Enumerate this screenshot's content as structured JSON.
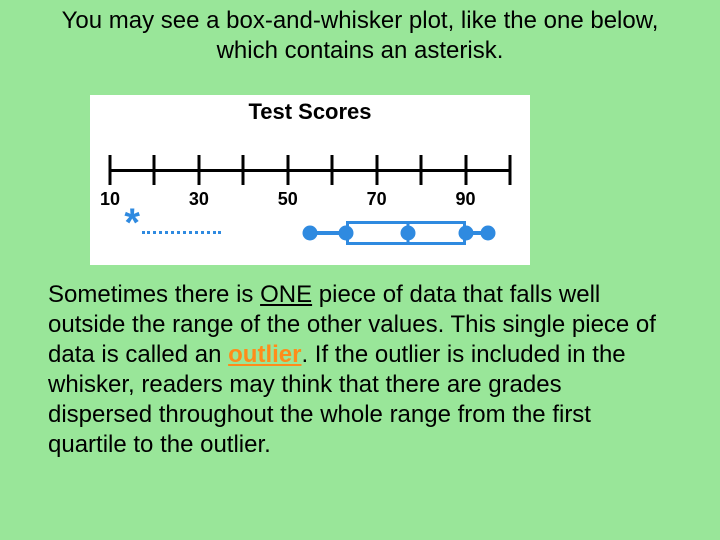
{
  "intro_line1": "You may see a box-and-whisker plot, like the one below,",
  "intro_line2": "which contains an asterisk.",
  "chart": {
    "title": "Test Scores",
    "bg_color": "#ffffff",
    "axis_color": "#000000",
    "series_color": "#2f8ae0",
    "axis": {
      "min": 10,
      "max": 100,
      "tick_step": 10,
      "label_step": 20
    },
    "tick_labels": [
      "10",
      "30",
      "50",
      "70",
      "90"
    ],
    "boxplot": {
      "outlier": 15,
      "whisker_dash_end": 35,
      "whisker_min": 55,
      "q1": 63,
      "median": 77,
      "q3": 90,
      "whisker_max": 95
    }
  },
  "para_pre": "Sometimes there is ",
  "para_one": "ONE",
  "para_mid": " piece of data that falls well outside the range of the other values.  This single piece of data is called an ",
  "para_outlier": "outlier",
  "para_post": ".  If the outlier is included in the whisker, readers may think that there are grades dispersed throughout the whole range from the first quartile to the outlier.",
  "colors": {
    "slide_bg": "#99e699",
    "text": "#000000",
    "keyword": "#ff8c1a"
  }
}
